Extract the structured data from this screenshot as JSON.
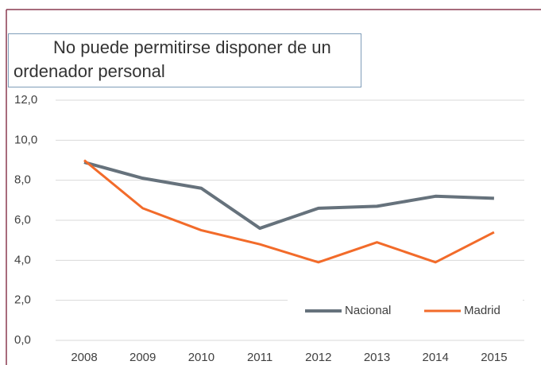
{
  "chart_data": {
    "type": "line",
    "title": "No puede permitirse disponer de un ordenador personal",
    "categories": [
      "2008",
      "2009",
      "2010",
      "2011",
      "2012",
      "2013",
      "2014",
      "2015"
    ],
    "series": [
      {
        "name": "Nacional",
        "color": "#66727c",
        "values": [
          8.9,
          8.1,
          7.6,
          5.6,
          6.6,
          6.7,
          7.2,
          7.1
        ]
      },
      {
        "name": "Madrid",
        "color": "#f26b2a",
        "values": [
          9.0,
          6.6,
          5.5,
          4.8,
          3.9,
          4.9,
          3.9,
          5.4
        ]
      }
    ],
    "ylim": [
      0,
      12
    ],
    "yticks": [
      {
        "value": 0,
        "label": "0,0"
      },
      {
        "value": 2,
        "label": "2,0"
      },
      {
        "value": 4,
        "label": "4,0"
      },
      {
        "value": 6,
        "label": "6,0"
      },
      {
        "value": 8,
        "label": "8,0"
      },
      {
        "value": 10,
        "label": "10,0"
      },
      {
        "value": 12,
        "label": "12,0"
      }
    ],
    "grid": true,
    "legend": "lower right"
  }
}
